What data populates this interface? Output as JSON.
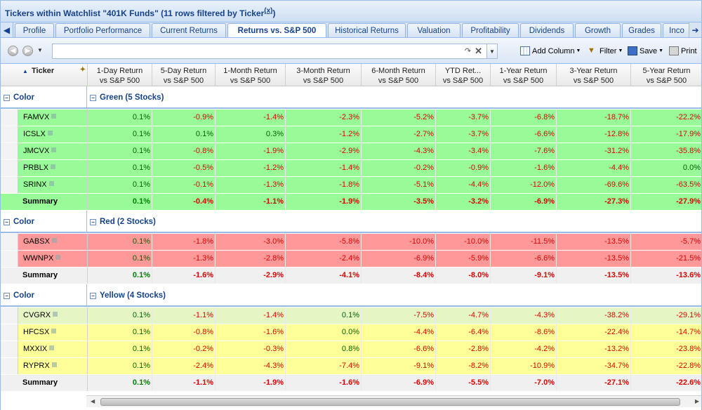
{
  "title": {
    "text": "Tickers within Watchlist \"401K Funds\" (11 rows filtered by Ticker",
    "close": "(x)",
    "tail": ")"
  },
  "tabs": [
    "Profile",
    "Portfolio Performance",
    "Current Returns",
    "Returns vs. S&P 500",
    "Historical Returns",
    "Valuation",
    "Profitability",
    "Dividends",
    "Growth",
    "Grades",
    "Inco"
  ],
  "active_tab": "Returns vs. S&P 500",
  "toolbar": {
    "search_value": "",
    "add_column": "Add Column",
    "filter": "Filter",
    "save": "Save",
    "print": "Print"
  },
  "columns": {
    "ticker": "Ticker",
    "c1a": "1-Day Return",
    "c1b": "vs S&P 500",
    "c2a": "5-Day Return",
    "c2b": "vs S&P 500",
    "c3a": "1-Month Return",
    "c3b": "vs S&P 500",
    "c4a": "3-Month Return",
    "c4b": "vs S&P 500",
    "c5a": "6-Month Return",
    "c5b": "vs S&P 500",
    "c6a": "YTD Ret...",
    "c6b": "vs S&P 500",
    "c7a": "1-Year Return",
    "c7b": "vs S&P 500",
    "c8a": "3-Year Return",
    "c8b": "vs S&P 500",
    "c9a": "5-Year Return",
    "c9b": "vs S&P 500"
  },
  "groups": [
    {
      "key": "Color",
      "label": "Green (5 Stocks)",
      "color": "green",
      "rows": [
        {
          "t": "FAMVX",
          "v": [
            "0.1%",
            "-0.9%",
            "-1.4%",
            "-2.3%",
            "-5.2%",
            "-3.7%",
            "-6.8%",
            "-18.7%",
            "-22.2%"
          ]
        },
        {
          "t": "ICSLX",
          "v": [
            "0.1%",
            "0.1%",
            "0.3%",
            "-1.2%",
            "-2.7%",
            "-3.7%",
            "-6.6%",
            "-12.8%",
            "-17.9%"
          ]
        },
        {
          "t": "JMCVX",
          "v": [
            "0.1%",
            "-0.8%",
            "-1.9%",
            "-2.9%",
            "-4.3%",
            "-3.4%",
            "-7.6%",
            "-31.2%",
            "-35.8%"
          ]
        },
        {
          "t": "PRBLX",
          "v": [
            "0.1%",
            "-0.5%",
            "-1.2%",
            "-1.4%",
            "-0.2%",
            "-0.9%",
            "-1.6%",
            "-4.4%",
            "0.0%"
          ]
        },
        {
          "t": "SRINX",
          "v": [
            "0.1%",
            "-0.1%",
            "-1.3%",
            "-1.8%",
            "-5.1%",
            "-4.4%",
            "-12.0%",
            "-69.6%",
            "-63.5%"
          ]
        }
      ],
      "summary": {
        "t": "Summary",
        "v": [
          "0.1%",
          "-0.4%",
          "-1.1%",
          "-1.9%",
          "-3.5%",
          "-3.2%",
          "-6.9%",
          "-27.3%",
          "-27.9%"
        ]
      }
    },
    {
      "key": "Color",
      "label": "Red (2 Stocks)",
      "color": "red",
      "rows": [
        {
          "t": "GABSX",
          "v": [
            "0.1%",
            "-1.8%",
            "-3.0%",
            "-5.8%",
            "-10.0%",
            "-10.0%",
            "-11.5%",
            "-13.5%",
            "-5.7%"
          ]
        },
        {
          "t": "WWNPX",
          "v": [
            "0.1%",
            "-1.3%",
            "-2.8%",
            "-2.4%",
            "-6.9%",
            "-5.9%",
            "-6.6%",
            "-13.5%",
            "-21.5%"
          ]
        }
      ],
      "summary": {
        "t": "Summary",
        "v": [
          "0.1%",
          "-1.6%",
          "-2.9%",
          "-4.1%",
          "-8.4%",
          "-8.0%",
          "-9.1%",
          "-13.5%",
          "-13.6%"
        ]
      }
    },
    {
      "key": "Color",
      "label": "Yellow (4 Stocks)",
      "color": "yellow",
      "rows": [
        {
          "t": "CVGRX",
          "v": [
            "0.1%",
            "-1.1%",
            "-1.4%",
            "0.1%",
            "-7.5%",
            "-4.7%",
            "-4.3%",
            "-38.2%",
            "-29.1%"
          ]
        },
        {
          "t": "HFCSX",
          "v": [
            "0.1%",
            "-0.8%",
            "-1.6%",
            "0.0%",
            "-4.4%",
            "-6.4%",
            "-8.6%",
            "-22.4%",
            "-14.7%"
          ]
        },
        {
          "t": "MXXIX",
          "v": [
            "0.1%",
            "-0.2%",
            "-0.3%",
            "0.8%",
            "-6.6%",
            "-2.8%",
            "-4.2%",
            "-13.2%",
            "-23.8%"
          ]
        },
        {
          "t": "RYPRX",
          "v": [
            "0.1%",
            "-2.4%",
            "-4.3%",
            "-7.4%",
            "-9.1%",
            "-8.2%",
            "-10.9%",
            "-34.7%",
            "-22.8%"
          ]
        }
      ],
      "summary": {
        "t": "Summary",
        "v": [
          "0.1%",
          "-1.1%",
          "-1.9%",
          "-1.6%",
          "-6.9%",
          "-5.5%",
          "-7.0%",
          "-27.1%",
          "-22.6%"
        ]
      }
    }
  ],
  "colors": {
    "green_row": "#98fb98",
    "red_row": "#ff9999",
    "yellow_row": "#ffff99",
    "negative_text": "#e00000",
    "positive_text": "#006400",
    "accent": "#15428b"
  }
}
